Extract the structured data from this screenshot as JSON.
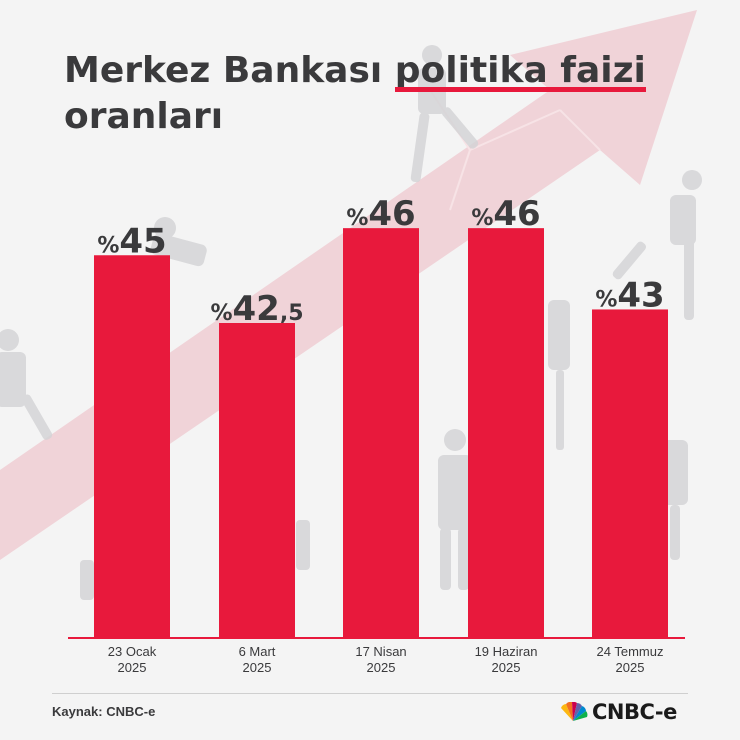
{
  "title": {
    "part1": "Merkez Bankası",
    "highlight": "politika faizi",
    "line2": "oranları"
  },
  "source": "Kaynak: CNBC-e",
  "logo_text": "CNBC-e",
  "colors": {
    "bar": "#e8193c",
    "text": "#3a3a3c",
    "background": "#f4f4f4",
    "arrow": "#efc8cf"
  },
  "chart_data": {
    "type": "bar",
    "categories": [
      [
        "23 Ocak",
        "2025"
      ],
      [
        "6 Mart",
        "2025"
      ],
      [
        "17 Nisan",
        "2025"
      ],
      [
        "19 Haziran",
        "2025"
      ],
      [
        "24 Temmuz",
        "2025"
      ]
    ],
    "values": [
      45,
      42.5,
      46,
      46,
      43
    ],
    "value_labels": [
      {
        "prefix": "%",
        "main": "45",
        "suffix": ""
      },
      {
        "prefix": "%",
        "main": "42",
        "suffix": ",5"
      },
      {
        "prefix": "%",
        "main": "46",
        "suffix": ""
      },
      {
        "prefix": "%",
        "main": "46",
        "suffix": ""
      },
      {
        "prefix": "%",
        "main": "43",
        "suffix": ""
      }
    ],
    "xlabel": "",
    "ylabel": "",
    "grid": false
  }
}
